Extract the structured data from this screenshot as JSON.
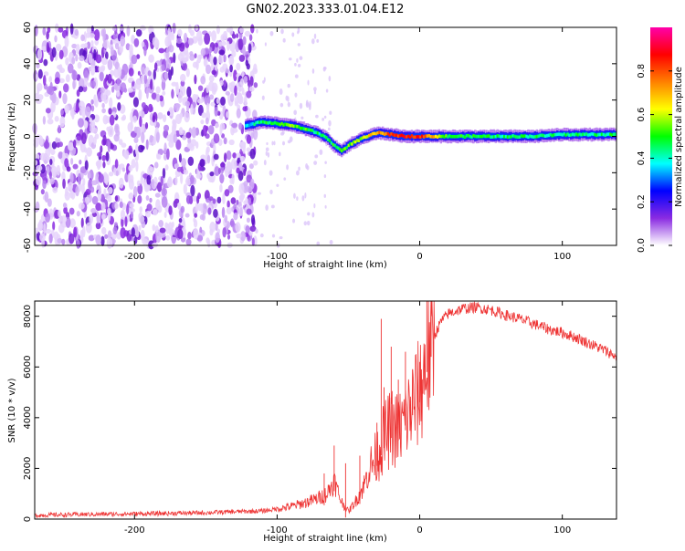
{
  "title": "GN02.2023.333.01.04.E12",
  "chart_data": [
    {
      "type": "heatmap",
      "xlabel": "Height of straight line (km)",
      "ylabel": "Frequency (Hz)",
      "xlim": [
        -270,
        138
      ],
      "ylim": [
        -60,
        60
      ],
      "x_ticks": [
        -200,
        -100,
        0,
        100
      ],
      "x_tick_labels": [
        "-200",
        "-100",
        "0",
        "100"
      ],
      "y_ticks": [
        60,
        40,
        20,
        0,
        -20,
        -40,
        -60
      ],
      "y_tick_labels": [
        "60",
        "40",
        "20",
        "0",
        "-20",
        "-40",
        "-60"
      ],
      "colorbar": {
        "label": "Normalized spectral amplitude",
        "range": [
          0,
          1
        ],
        "ticks": [
          0.0,
          0.2,
          0.4,
          0.6,
          0.8
        ],
        "tick_labels": [
          "0.0",
          "0.2",
          "0.4",
          "0.6",
          "0.8"
        ],
        "colormap": [
          "#ffffff",
          "#8a2be2",
          "#0000ff",
          "#00ffff",
          "#00ff00",
          "#ffff00",
          "#ff8000",
          "#ff0000",
          "#ff00aa"
        ]
      },
      "noise_region_x": [
        -270,
        -115
      ],
      "sparse_noise_x": [
        -115,
        -62
      ],
      "signal_ridge": {
        "x": [
          -122,
          -110,
          -100,
          -90,
          -80,
          -72,
          -65,
          -60,
          -55,
          -48,
          -40,
          -30,
          -20,
          -10,
          0,
          20,
          50,
          80,
          100,
          120,
          138
        ],
        "frequency": [
          6,
          8,
          7,
          6,
          4,
          2,
          -1,
          -5,
          -8,
          -4,
          -1,
          2,
          1,
          0,
          0,
          0,
          0,
          0,
          1,
          1,
          1
        ],
        "peak_amplitude": [
          0.35,
          0.45,
          0.5,
          0.55,
          0.5,
          0.45,
          0.45,
          0.5,
          0.5,
          0.55,
          0.6,
          0.7,
          0.8,
          0.85,
          0.85,
          0.5,
          0.45,
          0.45,
          0.45,
          0.45,
          0.45
        ]
      },
      "grid": false
    },
    {
      "type": "line",
      "xlabel": "Height of straight line (km)",
      "ylabel": "SNR (10 * v/v)",
      "xlim": [
        -270,
        138
      ],
      "ylim": [
        0,
        8600
      ],
      "x_ticks": [
        -200,
        -100,
        0,
        100
      ],
      "x_tick_labels": [
        "-200",
        "-100",
        "0",
        "100"
      ],
      "y_ticks": [
        0,
        2000,
        4000,
        6000,
        8000
      ],
      "y_tick_labels": [
        "0",
        "2000",
        "4000",
        "6000",
        "8000"
      ],
      "color": "#ee3333",
      "series": [
        {
          "x": [
            -270,
            -240,
            -210,
            -180,
            -150,
            -130,
            -110,
            -100,
            -90,
            -80,
            -72,
            -65,
            -60,
            -55,
            -50,
            -45,
            -40,
            -35,
            -30,
            -25,
            -20,
            -15,
            -10,
            -5,
            0,
            5,
            10,
            15,
            20,
            30,
            40,
            50,
            60,
            70,
            80,
            90,
            100,
            110,
            120,
            130,
            138
          ],
          "values": [
            150,
            180,
            200,
            220,
            250,
            290,
            320,
            400,
            500,
            650,
            800,
            1000,
            1500,
            700,
            300,
            700,
            1200,
            2000,
            2500,
            3200,
            3600,
            3500,
            3900,
            4500,
            5000,
            6200,
            7200,
            7800,
            8100,
            8300,
            8350,
            8250,
            8050,
            7900,
            7700,
            7500,
            7350,
            7150,
            6900,
            6650,
            6400
          ]
        }
      ],
      "spikes": {
        "x": [
          -67,
          -60,
          -52,
          -42,
          -30,
          -27,
          -25,
          -20,
          -15,
          -10,
          -5,
          0,
          5,
          8
        ],
        "values": [
          1800,
          2900,
          2200,
          2500,
          3800,
          7900,
          5200,
          6800,
          5500,
          6600,
          5900,
          6200,
          8600,
          8600
        ]
      },
      "grid": false
    }
  ]
}
